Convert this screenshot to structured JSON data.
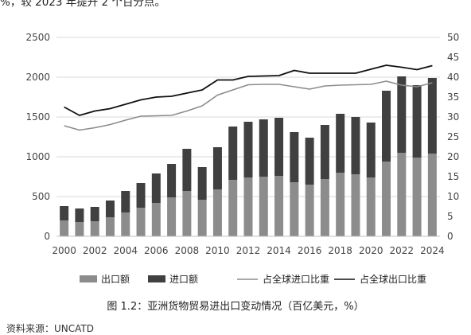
{
  "intro_text": "%，较 2023 年提升 2 个百分点。",
  "caption": "图 1.2：亚洲货物贸易进出口变动情况（百亿美元，%）",
  "source": "资料来源：UNCATD",
  "chart_data": {
    "type": "bar",
    "stacked": true,
    "x": [
      2000,
      2001,
      2002,
      2003,
      2004,
      2005,
      2006,
      2007,
      2008,
      2009,
      2010,
      2011,
      2012,
      2013,
      2014,
      2015,
      2016,
      2017,
      2018,
      2019,
      2020,
      2021,
      2022,
      2023,
      2024
    ],
    "x_ticks": [
      2000,
      2002,
      2004,
      2006,
      2008,
      2010,
      2012,
      2014,
      2016,
      2018,
      2020,
      2022,
      2024
    ],
    "ylim_left": [
      0,
      2500
    ],
    "yticks_left": [
      0,
      500,
      1000,
      1500,
      2000,
      2500
    ],
    "ylim_right": [
      0,
      50
    ],
    "yticks_right": [
      0,
      5,
      10,
      15,
      20,
      25,
      30,
      35,
      40,
      45,
      50
    ],
    "grid": "horizontal",
    "legend_position": "bottom",
    "series": [
      {
        "name": "出口额",
        "kind": "bar",
        "axis": "left",
        "color": "#8c8c8c",
        "values": [
          200,
          180,
          190,
          240,
          300,
          360,
          420,
          490,
          570,
          460,
          590,
          710,
          740,
          750,
          760,
          680,
          650,
          720,
          800,
          780,
          740,
          940,
          1050,
          990,
          1040
        ]
      },
      {
        "name": "进口额",
        "kind": "bar",
        "axis": "left",
        "color": "#404040",
        "values": [
          180,
          170,
          180,
          210,
          270,
          310,
          370,
          420,
          530,
          410,
          530,
          670,
          700,
          720,
          730,
          630,
          590,
          680,
          740,
          720,
          690,
          890,
          960,
          910,
          950
        ]
      },
      {
        "name": "占全球进口比重",
        "kind": "line",
        "axis": "right",
        "color": "#8c8c8c",
        "values": [
          27.8,
          26.7,
          27.3,
          28.1,
          29.2,
          30.2,
          30.3,
          30.4,
          31.5,
          32.8,
          35.5,
          36.8,
          38.1,
          38.2,
          38.2,
          37.6,
          37.0,
          37.8,
          38.0,
          38.1,
          38.2,
          39.0,
          38.0,
          37.6,
          38.6
        ]
      },
      {
        "name": "占全球出口比重",
        "kind": "line",
        "axis": "right",
        "color": "#111111",
        "values": [
          32.5,
          30.4,
          31.5,
          32.1,
          33.2,
          34.3,
          35.0,
          35.2,
          36.0,
          36.8,
          39.3,
          39.3,
          40.2,
          40.3,
          40.4,
          41.7,
          41.0,
          41.0,
          41.0,
          41.0,
          42.0,
          43.0,
          42.5,
          41.9,
          42.9
        ]
      }
    ]
  }
}
